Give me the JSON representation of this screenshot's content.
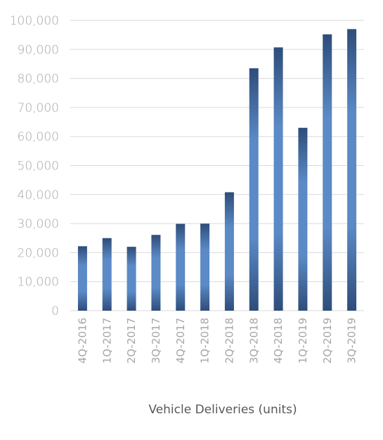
{
  "chart_data": {
    "type": "bar",
    "title": "",
    "xlabel": "Vehicle Deliveries (units)",
    "ylabel": "",
    "categories": [
      "4Q-2016",
      "1Q-2017",
      "2Q-2017",
      "3Q-2017",
      "4Q-2017",
      "1Q-2018",
      "2Q-2018",
      "3Q-2018",
      "4Q-2018",
      "1Q-2019",
      "2Q-2019",
      "3Q-2019"
    ],
    "values": [
      22200,
      25000,
      22000,
      26100,
      29900,
      29980,
      40800,
      83500,
      90700,
      63000,
      95200,
      97000
    ],
    "ylim": [
      0,
      100000
    ],
    "yticks": [
      0,
      10000,
      20000,
      30000,
      40000,
      50000,
      60000,
      70000,
      80000,
      90000,
      100000
    ],
    "ytick_labels": [
      "0",
      "10,000",
      "20,000",
      "30,000",
      "40,000",
      "50,000",
      "60,000",
      "70,000",
      "80,000",
      "90,000",
      "100,000"
    ],
    "grid": true,
    "legend": "none",
    "colors": {
      "bar_edge": "#2e4d7a",
      "bar_center": "#5b8ac6",
      "grid": "#d9d9d9",
      "tick_text": "#a6a6a6",
      "axis_label_text": "#595959"
    }
  }
}
